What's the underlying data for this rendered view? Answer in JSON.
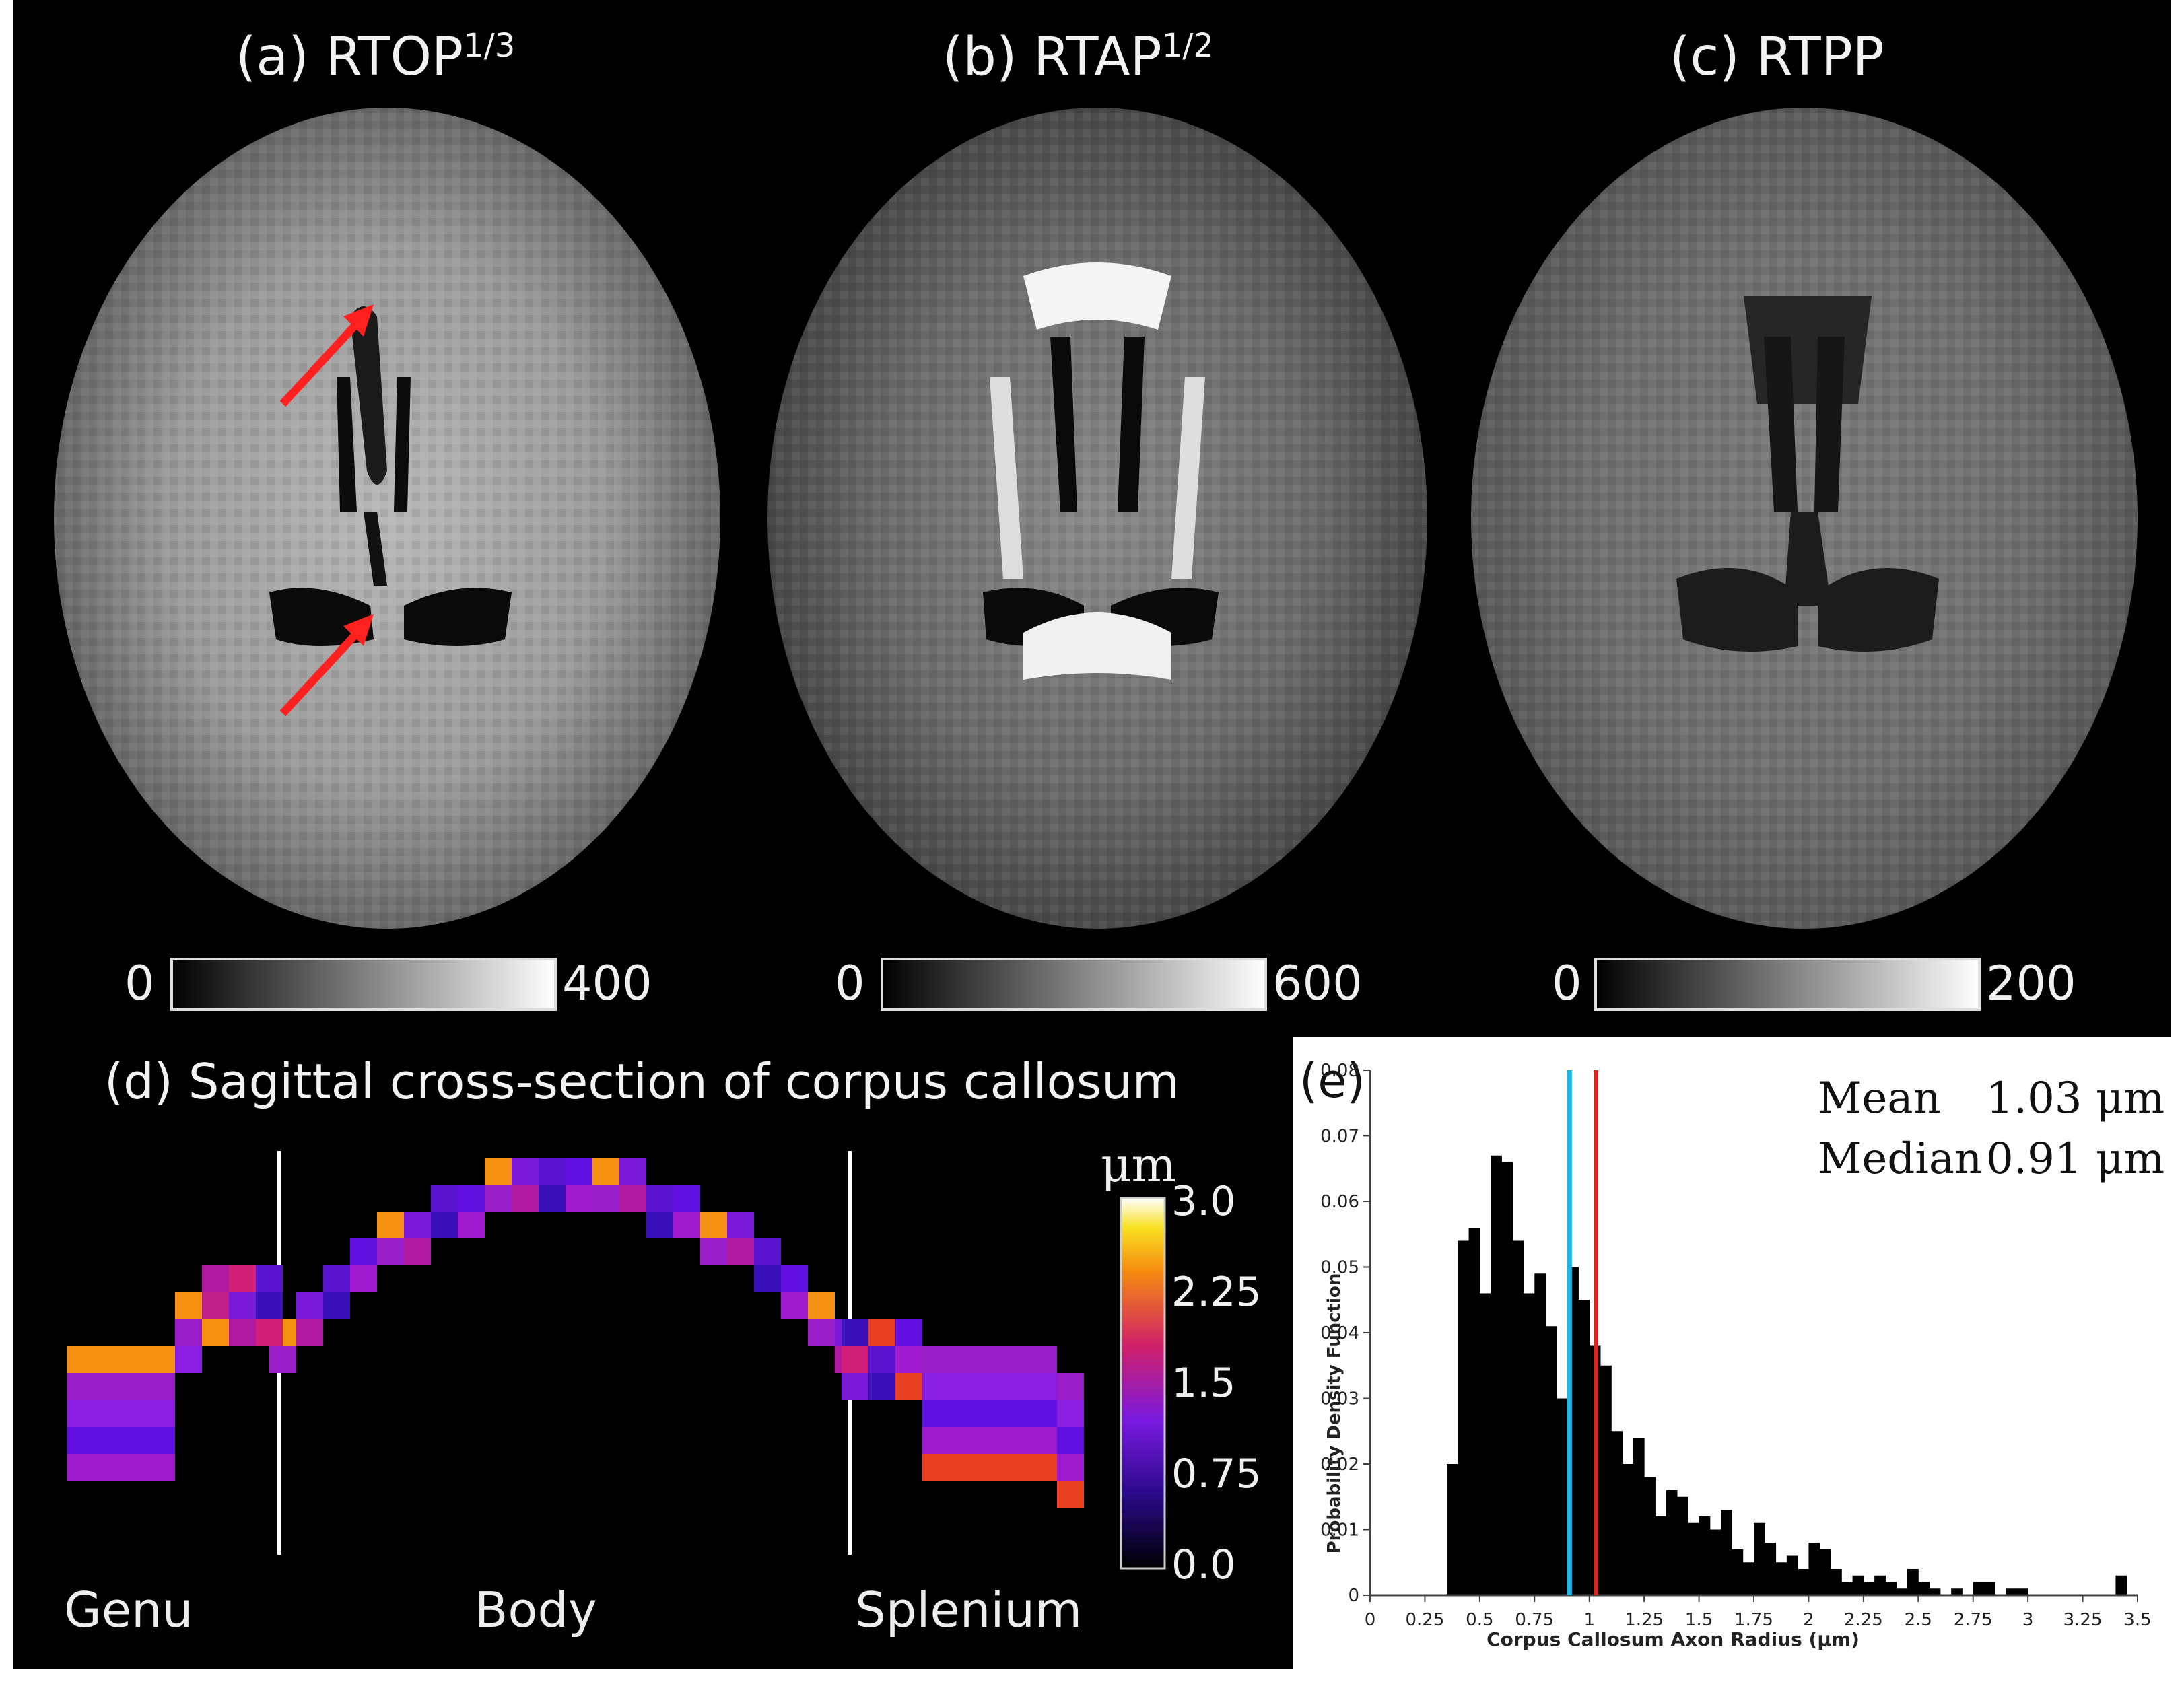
{
  "panels": {
    "a": {
      "label": "(a) RTOP",
      "sup": "1/3",
      "cb_min": "0",
      "cb_max": "400"
    },
    "b": {
      "label": "(b) RTAP",
      "sup": "1/2",
      "cb_min": "0",
      "cb_max": "600"
    },
    "c": {
      "label": "(c) RTPP",
      "cb_min": "0",
      "cb_max": "200"
    },
    "d": {
      "label": "(d) Sagittal cross-section of corpus callosum",
      "regions": [
        "Genu",
        "Body",
        "Splenium"
      ],
      "colorbar_unit": "μm",
      "colorbar_ticks": [
        "3.0",
        "2.25",
        "1.5",
        "0.75",
        "0.0"
      ]
    },
    "e": {
      "label": "(e)",
      "mean_label": "Mean",
      "mean_value": "1.03 μm",
      "median_label": "Median",
      "median_value": "0.91 μm"
    }
  },
  "colors": {
    "arrow": "#ff2020",
    "mean_line": "#e02020",
    "median_line": "#20b8e8",
    "hist_bar": "#000000"
  },
  "chart_data": {
    "type": "bar",
    "xlabel": "Corpus Callosum Axon Radius (μm)",
    "ylabel": "Probability Density Function",
    "xlim": [
      0,
      3.5
    ],
    "ylim": [
      0,
      0.08
    ],
    "xticks": [
      "0",
      "0.25",
      "0.5",
      "0.75",
      "1",
      "1.25",
      "1.5",
      "1.75",
      "2",
      "2.25",
      "2.5",
      "2.75",
      "3",
      "3.25",
      "3.5"
    ],
    "yticks": [
      "0",
      "0.01",
      "0.02",
      "0.03",
      "0.04",
      "0.05",
      "0.06",
      "0.07",
      "0.08"
    ],
    "bin_width": 0.05,
    "bin_starts": [
      0.35,
      0.4,
      0.45,
      0.5,
      0.55,
      0.6,
      0.65,
      0.7,
      0.75,
      0.8,
      0.85,
      0.9,
      0.95,
      1.0,
      1.05,
      1.1,
      1.15,
      1.2,
      1.25,
      1.3,
      1.35,
      1.4,
      1.45,
      1.5,
      1.55,
      1.6,
      1.65,
      1.7,
      1.75,
      1.8,
      1.85,
      1.9,
      1.95,
      2.0,
      2.05,
      2.1,
      2.15,
      2.2,
      2.25,
      2.3,
      2.35,
      2.4,
      2.45,
      2.5,
      2.55,
      2.6,
      2.65,
      2.7,
      2.75,
      2.8,
      2.85,
      2.9,
      2.95,
      3.0,
      3.05,
      3.1,
      3.15,
      3.2,
      3.25,
      3.3,
      3.35,
      3.4
    ],
    "values": [
      0.02,
      0.054,
      0.056,
      0.046,
      0.067,
      0.066,
      0.054,
      0.046,
      0.049,
      0.041,
      0.03,
      0.05,
      0.045,
      0.038,
      0.035,
      0.025,
      0.02,
      0.024,
      0.018,
      0.012,
      0.016,
      0.015,
      0.011,
      0.012,
      0.01,
      0.013,
      0.007,
      0.005,
      0.011,
      0.008,
      0.005,
      0.006,
      0.004,
      0.008,
      0.007,
      0.004,
      0.002,
      0.003,
      0.002,
      0.003,
      0.002,
      0.001,
      0.004,
      0.002,
      0.001,
      0.0,
      0.001,
      0.0,
      0.002,
      0.002,
      0.0,
      0.001,
      0.001,
      0.0,
      0.0,
      0.0,
      0.0,
      0.0,
      0.0,
      0.0,
      0.0,
      0.003
    ],
    "mean": 1.03,
    "median": 0.91
  }
}
